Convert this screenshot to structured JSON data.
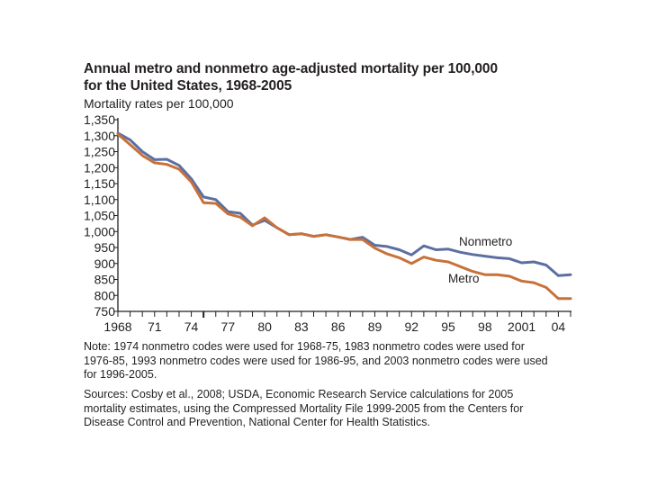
{
  "chart_data": {
    "type": "line",
    "title": "Annual metro and nonmetro age-adjusted mortality per 100,000 for the United States, 1968-2005",
    "title_lines": [
      "Annual metro and nonmetro age-adjusted mortality per 100,000",
      "for the United States, 1968-2005"
    ],
    "ylabel": "Mortality rates per 100,000",
    "xlabel": "",
    "ylim": [
      750,
      1350
    ],
    "xlim": [
      1968,
      2005
    ],
    "yticks": [
      750,
      800,
      850,
      900,
      950,
      1000,
      1050,
      1100,
      1150,
      1200,
      1250,
      1300,
      1350
    ],
    "ytick_labels": [
      "750",
      "800",
      "850",
      "900",
      "950",
      "1,000",
      "1,050",
      "1,100",
      "1,150",
      "1,200",
      "1,250",
      "1,300",
      "1,350"
    ],
    "xticks_labeled": [
      1968,
      1971,
      1974,
      1977,
      1980,
      1983,
      1986,
      1989,
      1992,
      1995,
      1998,
      2001,
      2004
    ],
    "xtick_labels": [
      "1968",
      "71",
      "74",
      "77",
      "80",
      "83",
      "86",
      "89",
      "92",
      "95",
      "98",
      "2001",
      "04"
    ],
    "grid": false,
    "legend": "inline labels near line ends",
    "x": [
      1968,
      1969,
      1970,
      1971,
      1972,
      1973,
      1974,
      1975,
      1976,
      1977,
      1978,
      1979,
      1980,
      1981,
      1982,
      1983,
      1984,
      1985,
      1986,
      1987,
      1988,
      1989,
      1990,
      1991,
      1992,
      1993,
      1994,
      1995,
      1996,
      1997,
      1998,
      1999,
      2000,
      2001,
      2002,
      2003,
      2004,
      2005
    ],
    "series": [
      {
        "name": "Nonmetro",
        "color": "#5b6fa0",
        "values": [
          1308,
          1287,
          1250,
          1225,
          1226,
          1207,
          1165,
          1108,
          1100,
          1062,
          1057,
          1020,
          1035,
          1012,
          990,
          993,
          985,
          990,
          983,
          975,
          982,
          957,
          953,
          943,
          927,
          955,
          943,
          945,
          935,
          928,
          923,
          918,
          915,
          902,
          905,
          895,
          862,
          865
        ]
      },
      {
        "name": "Metro",
        "color": "#c8713a",
        "values": [
          1305,
          1272,
          1238,
          1215,
          1210,
          1195,
          1155,
          1090,
          1088,
          1055,
          1045,
          1018,
          1043,
          1012,
          990,
          993,
          985,
          990,
          983,
          975,
          975,
          948,
          930,
          918,
          900,
          920,
          910,
          905,
          890,
          875,
          865,
          865,
          860,
          845,
          840,
          825,
          790,
          790
        ]
      }
    ]
  },
  "note": "Note: 1974 nonmetro codes were used for 1968-75, 1983 nonmetro codes were used for 1976-85, 1993 nonmetro codes were used for 1986-95, and 2003 nonmetro codes were used for 1996-2005.",
  "sources": "Sources: Cosby et al., 2008; USDA, Economic Research Service calculations for 2005 mortality estimates, using the Compressed Mortality File 1999-2005 from the Centers for Disease Control and Prevention, National Center for Health Statistics."
}
